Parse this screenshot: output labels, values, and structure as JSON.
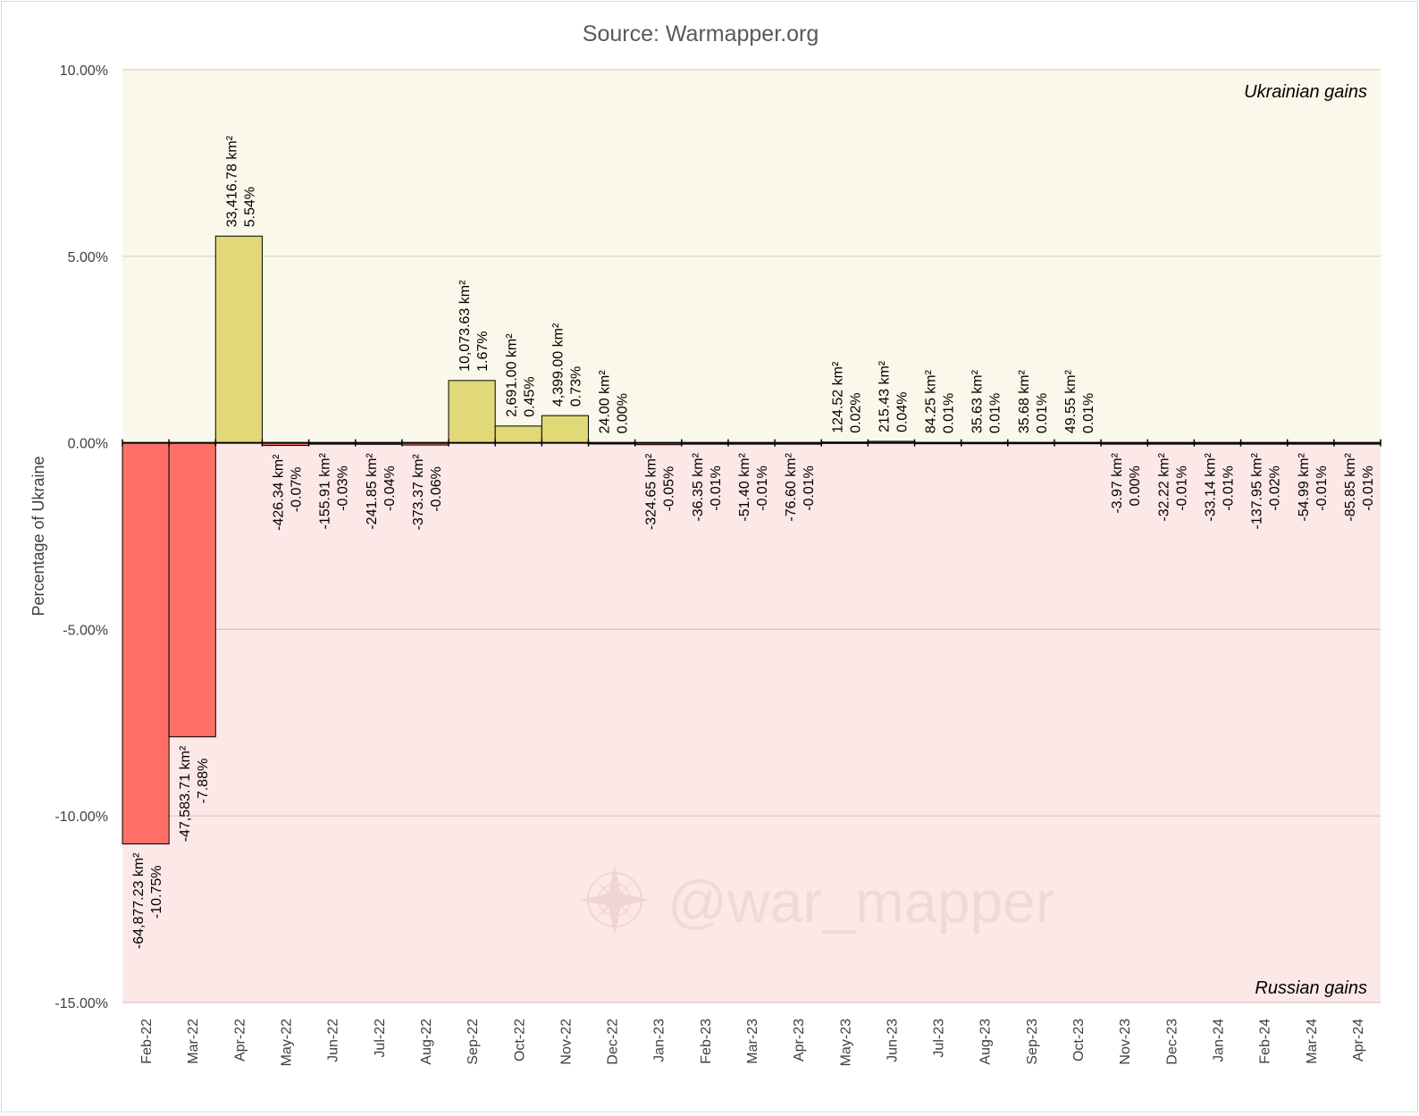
{
  "chart_data": {
    "type": "bar",
    "title": "Source: Warmapper.org",
    "ylabel": "Percentage of Ukraine",
    "xlabel": "",
    "ylim": [
      -15,
      10
    ],
    "yticks": [
      10,
      5,
      0,
      -5,
      -10,
      -15
    ],
    "ytick_labels": [
      "10.00%",
      "5.00%",
      "0.00%",
      "-5.00%",
      "-10.00%",
      "-15.00%"
    ],
    "grid": true,
    "region_labels": {
      "positive": "Ukrainian gains",
      "negative": "Russian gains"
    },
    "watermark": "@war_mapper",
    "colors": {
      "positive_region": "#faf8ea",
      "negative_region": "#fde8e8",
      "positive_bar": "#e1d877",
      "negative_bar": "#ff6f66",
      "grid_positive": "#d6d3c2",
      "grid_negative": "#dcc4c4",
      "axis": "#000000",
      "text": "#404040"
    },
    "categories": [
      "Feb-22",
      "Mar-22",
      "Apr-22",
      "May-22",
      "Jun-22",
      "Jul-22",
      "Aug-22",
      "Sep-22",
      "Oct-22",
      "Nov-22",
      "Dec-22",
      "Jan-23",
      "Feb-23",
      "Mar-23",
      "Apr-23",
      "May-23",
      "Jun-23",
      "Jul-23",
      "Aug-23",
      "Sep-23",
      "Oct-23",
      "Nov-23",
      "Dec-23",
      "Jan-24",
      "Feb-24",
      "Mar-24",
      "Apr-24"
    ],
    "values": [
      -10.75,
      -7.88,
      5.54,
      -0.07,
      -0.03,
      -0.04,
      -0.06,
      1.67,
      0.45,
      0.73,
      0.004,
      -0.05,
      -0.01,
      -0.01,
      -0.01,
      0.02,
      0.04,
      0.01,
      0.01,
      0.01,
      0.01,
      -0.001,
      -0.01,
      -0.01,
      -0.02,
      -0.01,
      -0.01
    ],
    "area_labels": [
      "-64,877.23 km²",
      "-47,583.71 km²",
      "33,416.78 km²",
      "-426.34 km²",
      "-155.91 km²",
      "-241.85 km²",
      "-373.37 km²",
      "10,073.63 km²",
      "2,691.00 km²",
      "4,399.00 km²",
      "24.00 km²",
      "-324.65 km²",
      "-36.35 km²",
      "-51.40 km²",
      "-76.60 km²",
      "124.52 km²",
      "215.43 km²",
      "84.25 km²",
      "35.63 km²",
      "35.68 km²",
      "49.55 km²",
      "-3.97 km²",
      "-32.22 km²",
      "-33.14 km²",
      "-137.95 km²",
      "-54.99 km²",
      "-85.85 km²"
    ],
    "pct_labels": [
      "-10.75%",
      "-7.88%",
      "5.54%",
      "-0.07%",
      "-0.03%",
      "-0.04%",
      "-0.06%",
      "1.67%",
      "0.45%",
      "0.73%",
      "0.00%",
      "-0.05%",
      "-0.01%",
      "-0.01%",
      "-0.01%",
      "0.02%",
      "0.04%",
      "0.01%",
      "0.01%",
      "0.01%",
      "0.01%",
      "0.00%",
      "-0.01%",
      "-0.01%",
      "-0.02%",
      "-0.01%",
      "-0.01%"
    ]
  }
}
